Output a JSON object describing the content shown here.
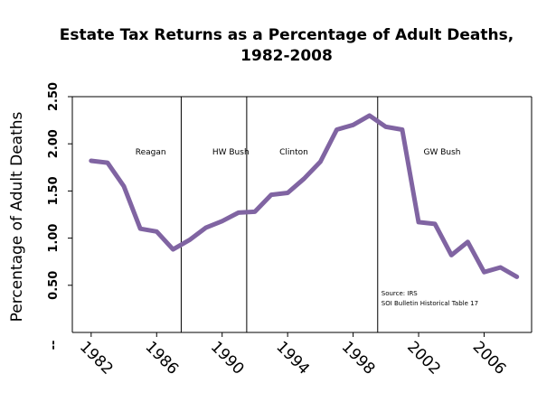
{
  "chart_data": {
    "type": "line",
    "title_line1": "Estate Tax Returns as a Percentage of Adult Deaths,",
    "title_line2": "1982-2008",
    "ylabel": "Percentage of Adult Deaths",
    "xlabel": "",
    "ylim": [
      0,
      2.5
    ],
    "xlim": [
      1982,
      2008
    ],
    "yticks": [
      {
        "value": 0.5,
        "label": "0.50"
      },
      {
        "value": 1.0,
        "label": "1.00"
      },
      {
        "value": 1.5,
        "label": "1.50"
      },
      {
        "value": 2.0,
        "label": "2.00"
      },
      {
        "value": 2.5,
        "label": "2.50"
      }
    ],
    "y_zero_label": "--",
    "xticks": [
      {
        "value": 1982,
        "label": "1982"
      },
      {
        "value": 1986,
        "label": "1986"
      },
      {
        "value": 1990,
        "label": "1990"
      },
      {
        "value": 1994,
        "label": "1994"
      },
      {
        "value": 1998,
        "label": "1998"
      },
      {
        "value": 2002,
        "label": "2002"
      },
      {
        "value": 2006,
        "label": "2006"
      }
    ],
    "series": [
      {
        "color": "#8064a2",
        "x": [
          1982,
          1983,
          1984,
          1985,
          1986,
          1987,
          1988,
          1989,
          1990,
          1991,
          1992,
          1993,
          1994,
          1995,
          1996,
          1997,
          1998,
          1999,
          2000,
          2001,
          2002,
          2003,
          2004,
          2005,
          2006,
          2007,
          2008
        ],
        "y": [
          1.82,
          1.8,
          1.55,
          1.1,
          1.07,
          0.88,
          0.98,
          1.11,
          1.18,
          1.27,
          1.28,
          1.46,
          1.48,
          1.63,
          1.81,
          2.15,
          2.2,
          2.3,
          2.18,
          2.15,
          1.17,
          1.15,
          0.82,
          0.96,
          0.64,
          0.69,
          0.59
        ]
      }
    ],
    "era_dividers": [
      1987.5,
      1991.5,
      1999.5
    ],
    "eras": [
      {
        "label": "Reagan",
        "x": 1984.7
      },
      {
        "label": "HW Bush",
        "x": 1989.4
      },
      {
        "label": "Clinton",
        "x": 1993.5
      },
      {
        "label": "GW Bush",
        "x": 2002.3
      }
    ],
    "source_line1": "Source: IRS",
    "source_line2": "SOI Bulletin  Historical Table  17",
    "grid": false,
    "legend": "none"
  }
}
